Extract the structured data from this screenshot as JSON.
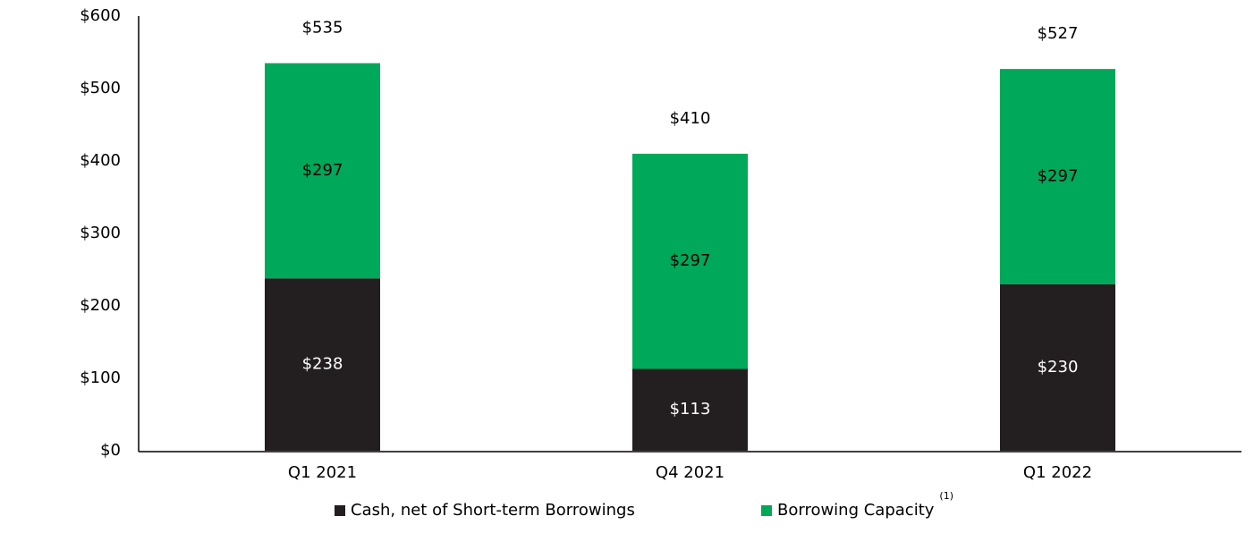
{
  "chart_data": {
    "type": "stacked_bar",
    "categories": [
      "Q1 2021",
      "Q4 2021",
      "Q1 2022"
    ],
    "series": [
      {
        "name": "Cash, net of Short-term Borrowings",
        "color": "#231f20",
        "label_color": "#ffffff",
        "values": [
          238,
          113,
          230
        ],
        "value_labels": [
          "$238",
          "$113",
          "$230"
        ]
      },
      {
        "name": "Borrowing Capacity",
        "name_note": "(1)",
        "color": "#00a859",
        "label_color": "#000000",
        "values": [
          297,
          297,
          297
        ],
        "value_labels": [
          "$297",
          "$297",
          "$297"
        ]
      }
    ],
    "totals": [
      535,
      410,
      527
    ],
    "total_labels": [
      "$535",
      "$410",
      "$527"
    ],
    "ylim": [
      0,
      600
    ],
    "yticks": [
      {
        "value": 0,
        "label": "$0"
      },
      {
        "value": 100,
        "label": "$100"
      },
      {
        "value": 200,
        "label": "$200"
      },
      {
        "value": 300,
        "label": "$300"
      },
      {
        "value": 400,
        "label": "$400"
      },
      {
        "value": 500,
        "label": "$500"
      },
      {
        "value": 600,
        "label": "$600"
      }
    ],
    "grid": false
  }
}
